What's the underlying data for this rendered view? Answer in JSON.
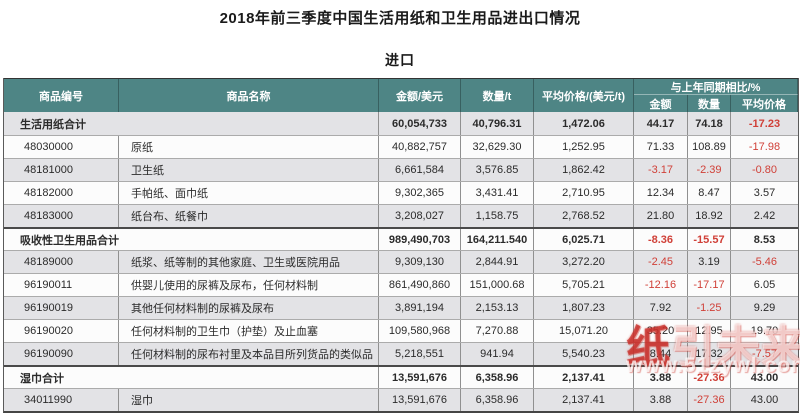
{
  "title": "2018年前三季度中国生活用纸和卫生用品进出口情况",
  "subtitle": "进口",
  "table": {
    "headers": {
      "code": "商品编号",
      "name": "商品名称",
      "amount": "金额/美元",
      "quantity": "数量/t",
      "avg_price": "平均价格/(美元/t)",
      "yoy_group": "与上年同期相比/%",
      "yoy_amount": "金额",
      "yoy_quantity": "数量",
      "yoy_avg_price": "平均价格"
    },
    "rows": [
      {
        "type": "summary",
        "code": "",
        "name": "生活用纸合计",
        "amount": "60,054,733",
        "quantity": "40,796.31",
        "avg_price": "1,472.06",
        "yoy_amount": "44.17",
        "yoy_quantity": "74.18",
        "yoy_avg_price": "-17.23"
      },
      {
        "type": "item",
        "code": "48030000",
        "name": "原纸",
        "amount": "40,882,757",
        "quantity": "32,629.30",
        "avg_price": "1,252.95",
        "yoy_amount": "71.33",
        "yoy_quantity": "108.89",
        "yoy_avg_price": "-17.98"
      },
      {
        "type": "item",
        "code": "48181000",
        "name": "卫生纸",
        "amount": "6,661,584",
        "quantity": "3,576.85",
        "avg_price": "1,862.42",
        "yoy_amount": "-3.17",
        "yoy_quantity": "-2.39",
        "yoy_avg_price": "-0.80"
      },
      {
        "type": "item",
        "code": "48182000",
        "name": "手帕纸、面巾纸",
        "amount": "9,302,365",
        "quantity": "3,431.41",
        "avg_price": "2,710.95",
        "yoy_amount": "12.34",
        "yoy_quantity": "8.47",
        "yoy_avg_price": "3.57"
      },
      {
        "type": "item",
        "code": "48183000",
        "name": "纸台布、纸餐巾",
        "amount": "3,208,027",
        "quantity": "1,158.75",
        "avg_price": "2,768.52",
        "yoy_amount": "21.80",
        "yoy_quantity": "18.92",
        "yoy_avg_price": "2.42"
      },
      {
        "type": "summary",
        "code": "",
        "name": "吸收性卫生用品合计",
        "amount": "989,490,703",
        "quantity": "164,211.540",
        "avg_price": "6,025.71",
        "yoy_amount": "-8.36",
        "yoy_quantity": "-15.57",
        "yoy_avg_price": "8.53"
      },
      {
        "type": "item",
        "code": "48189000",
        "name": "纸浆、纸等制的其他家庭、卫生或医院用品",
        "amount": "9,309,130",
        "quantity": "2,844.91",
        "avg_price": "3,272.20",
        "yoy_amount": "-2.45",
        "yoy_quantity": "3.19",
        "yoy_avg_price": "-5.46"
      },
      {
        "type": "item",
        "code": "96190011",
        "name": "供婴儿使用的尿裤及尿布，任何材料制",
        "amount": "861,490,860",
        "quantity": "151,000.68",
        "avg_price": "5,705.21",
        "yoy_amount": "-12.16",
        "yoy_quantity": "-17.17",
        "yoy_avg_price": "6.05"
      },
      {
        "type": "item",
        "code": "96190019",
        "name": "其他任何材料制的尿裤及尿布",
        "amount": "3,891,194",
        "quantity": "2,153.13",
        "avg_price": "1,807.23",
        "yoy_amount": "7.92",
        "yoy_quantity": "-1.25",
        "yoy_avg_price": "9.29"
      },
      {
        "type": "item",
        "code": "96190020",
        "name": "任何材料制的卫生巾（护垫）及止血塞",
        "amount": "109,580,968",
        "quantity": "7,270.88",
        "avg_price": "15,071.20",
        "yoy_amount": "35.20",
        "yoy_quantity": "12.95",
        "yoy_avg_price": "19.70"
      },
      {
        "type": "item",
        "code": "96190090",
        "name": "任何材料制的尿布衬里及本品目所列货品的类似品",
        "amount": "5,218,551",
        "quantity": "941.94",
        "avg_price": "5,540.23",
        "yoy_amount": "8.44",
        "yoy_quantity": "17.32",
        "yoy_avg_price": "-7.57"
      },
      {
        "type": "summary",
        "code": "",
        "name": "湿巾合计",
        "amount": "13,591,676",
        "quantity": "6,358.96",
        "avg_price": "2,137.41",
        "yoy_amount": "3.88",
        "yoy_quantity": "-27.36",
        "yoy_avg_price": "43.00"
      },
      {
        "type": "item",
        "code": "34011990",
        "name": "湿巾",
        "amount": "13,591,676",
        "quantity": "6,358.96",
        "avg_price": "2,137.41",
        "yoy_amount": "3.88",
        "yoy_quantity": "-27.36",
        "yoy_avg_price": "43.00"
      }
    ]
  },
  "watermark": {
    "brand": "纸引未来",
    "url": "www.51zywl.com"
  },
  "colors": {
    "header_bg": "#4e8585",
    "header_text": "#ffffff",
    "row_shade": "#e3e3e6",
    "row_plain": "#fcfcfc",
    "negative_value": "#d04038",
    "watermark_red": "#c62d28"
  }
}
